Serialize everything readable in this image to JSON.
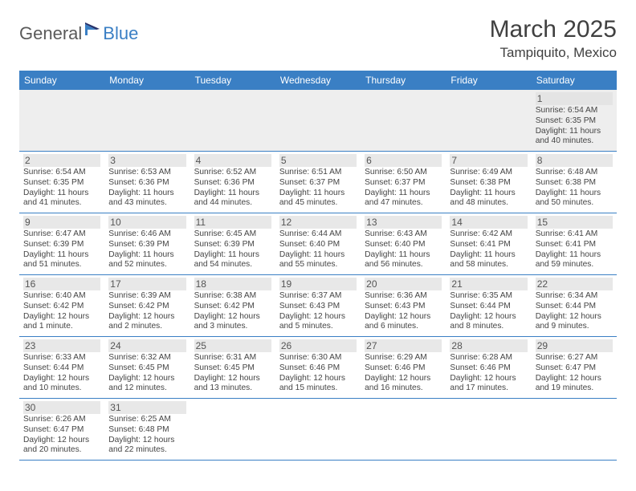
{
  "logo": {
    "part1": "General",
    "part2": "Blue"
  },
  "title": "March 2025",
  "location": "Tampiquito, Mexico",
  "colors": {
    "header_bg": "#3a7fc4",
    "header_text": "#ffffff",
    "border": "#3a7fc4",
    "page_bg": "#ffffff",
    "text": "#404040",
    "muted_row": "#eeeeee"
  },
  "day_headers": [
    "Sunday",
    "Monday",
    "Tuesday",
    "Wednesday",
    "Thursday",
    "Friday",
    "Saturday"
  ],
  "weeks": [
    [
      null,
      null,
      null,
      null,
      null,
      null,
      {
        "n": "1",
        "sunrise": "Sunrise: 6:54 AM",
        "sunset": "Sunset: 6:35 PM",
        "dl1": "Daylight: 11 hours",
        "dl2": "and 40 minutes."
      }
    ],
    [
      {
        "n": "2",
        "sunrise": "Sunrise: 6:54 AM",
        "sunset": "Sunset: 6:35 PM",
        "dl1": "Daylight: 11 hours",
        "dl2": "and 41 minutes."
      },
      {
        "n": "3",
        "sunrise": "Sunrise: 6:53 AM",
        "sunset": "Sunset: 6:36 PM",
        "dl1": "Daylight: 11 hours",
        "dl2": "and 43 minutes."
      },
      {
        "n": "4",
        "sunrise": "Sunrise: 6:52 AM",
        "sunset": "Sunset: 6:36 PM",
        "dl1": "Daylight: 11 hours",
        "dl2": "and 44 minutes."
      },
      {
        "n": "5",
        "sunrise": "Sunrise: 6:51 AM",
        "sunset": "Sunset: 6:37 PM",
        "dl1": "Daylight: 11 hours",
        "dl2": "and 45 minutes."
      },
      {
        "n": "6",
        "sunrise": "Sunrise: 6:50 AM",
        "sunset": "Sunset: 6:37 PM",
        "dl1": "Daylight: 11 hours",
        "dl2": "and 47 minutes."
      },
      {
        "n": "7",
        "sunrise": "Sunrise: 6:49 AM",
        "sunset": "Sunset: 6:38 PM",
        "dl1": "Daylight: 11 hours",
        "dl2": "and 48 minutes."
      },
      {
        "n": "8",
        "sunrise": "Sunrise: 6:48 AM",
        "sunset": "Sunset: 6:38 PM",
        "dl1": "Daylight: 11 hours",
        "dl2": "and 50 minutes."
      }
    ],
    [
      {
        "n": "9",
        "sunrise": "Sunrise: 6:47 AM",
        "sunset": "Sunset: 6:39 PM",
        "dl1": "Daylight: 11 hours",
        "dl2": "and 51 minutes."
      },
      {
        "n": "10",
        "sunrise": "Sunrise: 6:46 AM",
        "sunset": "Sunset: 6:39 PM",
        "dl1": "Daylight: 11 hours",
        "dl2": "and 52 minutes."
      },
      {
        "n": "11",
        "sunrise": "Sunrise: 6:45 AM",
        "sunset": "Sunset: 6:39 PM",
        "dl1": "Daylight: 11 hours",
        "dl2": "and 54 minutes."
      },
      {
        "n": "12",
        "sunrise": "Sunrise: 6:44 AM",
        "sunset": "Sunset: 6:40 PM",
        "dl1": "Daylight: 11 hours",
        "dl2": "and 55 minutes."
      },
      {
        "n": "13",
        "sunrise": "Sunrise: 6:43 AM",
        "sunset": "Sunset: 6:40 PM",
        "dl1": "Daylight: 11 hours",
        "dl2": "and 56 minutes."
      },
      {
        "n": "14",
        "sunrise": "Sunrise: 6:42 AM",
        "sunset": "Sunset: 6:41 PM",
        "dl1": "Daylight: 11 hours",
        "dl2": "and 58 minutes."
      },
      {
        "n": "15",
        "sunrise": "Sunrise: 6:41 AM",
        "sunset": "Sunset: 6:41 PM",
        "dl1": "Daylight: 11 hours",
        "dl2": "and 59 minutes."
      }
    ],
    [
      {
        "n": "16",
        "sunrise": "Sunrise: 6:40 AM",
        "sunset": "Sunset: 6:42 PM",
        "dl1": "Daylight: 12 hours",
        "dl2": "and 1 minute."
      },
      {
        "n": "17",
        "sunrise": "Sunrise: 6:39 AM",
        "sunset": "Sunset: 6:42 PM",
        "dl1": "Daylight: 12 hours",
        "dl2": "and 2 minutes."
      },
      {
        "n": "18",
        "sunrise": "Sunrise: 6:38 AM",
        "sunset": "Sunset: 6:42 PM",
        "dl1": "Daylight: 12 hours",
        "dl2": "and 3 minutes."
      },
      {
        "n": "19",
        "sunrise": "Sunrise: 6:37 AM",
        "sunset": "Sunset: 6:43 PM",
        "dl1": "Daylight: 12 hours",
        "dl2": "and 5 minutes."
      },
      {
        "n": "20",
        "sunrise": "Sunrise: 6:36 AM",
        "sunset": "Sunset: 6:43 PM",
        "dl1": "Daylight: 12 hours",
        "dl2": "and 6 minutes."
      },
      {
        "n": "21",
        "sunrise": "Sunrise: 6:35 AM",
        "sunset": "Sunset: 6:44 PM",
        "dl1": "Daylight: 12 hours",
        "dl2": "and 8 minutes."
      },
      {
        "n": "22",
        "sunrise": "Sunrise: 6:34 AM",
        "sunset": "Sunset: 6:44 PM",
        "dl1": "Daylight: 12 hours",
        "dl2": "and 9 minutes."
      }
    ],
    [
      {
        "n": "23",
        "sunrise": "Sunrise: 6:33 AM",
        "sunset": "Sunset: 6:44 PM",
        "dl1": "Daylight: 12 hours",
        "dl2": "and 10 minutes."
      },
      {
        "n": "24",
        "sunrise": "Sunrise: 6:32 AM",
        "sunset": "Sunset: 6:45 PM",
        "dl1": "Daylight: 12 hours",
        "dl2": "and 12 minutes."
      },
      {
        "n": "25",
        "sunrise": "Sunrise: 6:31 AM",
        "sunset": "Sunset: 6:45 PM",
        "dl1": "Daylight: 12 hours",
        "dl2": "and 13 minutes."
      },
      {
        "n": "26",
        "sunrise": "Sunrise: 6:30 AM",
        "sunset": "Sunset: 6:46 PM",
        "dl1": "Daylight: 12 hours",
        "dl2": "and 15 minutes."
      },
      {
        "n": "27",
        "sunrise": "Sunrise: 6:29 AM",
        "sunset": "Sunset: 6:46 PM",
        "dl1": "Daylight: 12 hours",
        "dl2": "and 16 minutes."
      },
      {
        "n": "28",
        "sunrise": "Sunrise: 6:28 AM",
        "sunset": "Sunset: 6:46 PM",
        "dl1": "Daylight: 12 hours",
        "dl2": "and 17 minutes."
      },
      {
        "n": "29",
        "sunrise": "Sunrise: 6:27 AM",
        "sunset": "Sunset: 6:47 PM",
        "dl1": "Daylight: 12 hours",
        "dl2": "and 19 minutes."
      }
    ],
    [
      {
        "n": "30",
        "sunrise": "Sunrise: 6:26 AM",
        "sunset": "Sunset: 6:47 PM",
        "dl1": "Daylight: 12 hours",
        "dl2": "and 20 minutes."
      },
      {
        "n": "31",
        "sunrise": "Sunrise: 6:25 AM",
        "sunset": "Sunset: 6:48 PM",
        "dl1": "Daylight: 12 hours",
        "dl2": "and 22 minutes."
      },
      null,
      null,
      null,
      null,
      null
    ]
  ]
}
